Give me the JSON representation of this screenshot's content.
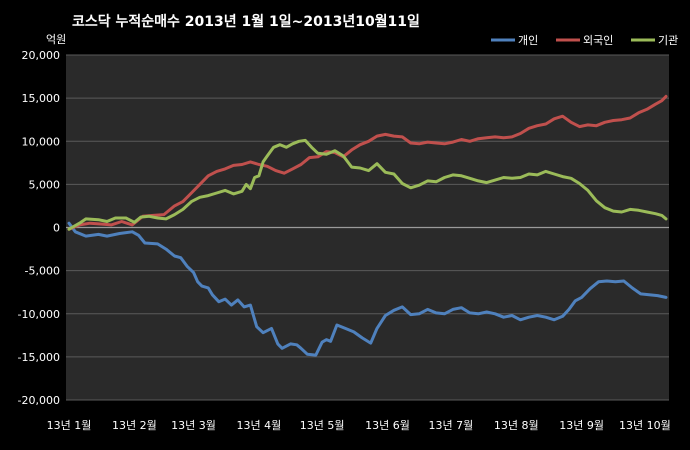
{
  "chart_data": {
    "type": "line",
    "title": "코스닥  누적순매수 2013년 1월 1일~2013년10월11일",
    "unit_label": "억원",
    "ylim": [
      -20000,
      20000
    ],
    "y_ticks": [
      20000,
      15000,
      10000,
      5000,
      0,
      -5000,
      -10000,
      -15000,
      -20000
    ],
    "y_tick_labels": [
      "20,000",
      "15,000",
      "10,000",
      "5,000",
      "0",
      "-5,000",
      "-10,000",
      "-15,000",
      "-20,000"
    ],
    "x_tick_labels": [
      "13년 1월",
      "13년 2월",
      "13년 3월",
      "13년 4월",
      "13년 5월",
      "13년 6월",
      "13년 7월",
      "13년 8월",
      "13년 9월",
      "13년 10월"
    ],
    "x_tick_days": [
      0,
      31,
      59,
      90,
      120,
      151,
      181,
      212,
      243,
      273
    ],
    "x_max_day": 283,
    "grid": "horizontal",
    "legend_position": "top-right",
    "background": "#000000",
    "plot_background": "#2a2a2a",
    "series": [
      {
        "name": "개인",
        "color": "#4f81bd",
        "points": [
          [
            0,
            500
          ],
          [
            3,
            -500
          ],
          [
            8,
            -1000
          ],
          [
            14,
            -800
          ],
          [
            18,
            -1000
          ],
          [
            24,
            -700
          ],
          [
            30,
            -500
          ],
          [
            33,
            -900
          ],
          [
            36,
            -1800
          ],
          [
            42,
            -1900
          ],
          [
            46,
            -2500
          ],
          [
            50,
            -3300
          ],
          [
            53,
            -3500
          ],
          [
            56,
            -4500
          ],
          [
            59,
            -5200
          ],
          [
            61,
            -6300
          ],
          [
            63,
            -6800
          ],
          [
            66,
            -7000
          ],
          [
            68,
            -7800
          ],
          [
            71,
            -8600
          ],
          [
            74,
            -8300
          ],
          [
            77,
            -9000
          ],
          [
            80,
            -8400
          ],
          [
            83,
            -9200
          ],
          [
            86,
            -9000
          ],
          [
            89,
            -11500
          ],
          [
            92,
            -12200
          ],
          [
            96,
            -11700
          ],
          [
            99,
            -13500
          ],
          [
            101,
            -14000
          ],
          [
            105,
            -13500
          ],
          [
            108,
            -13600
          ],
          [
            110,
            -14000
          ],
          [
            113,
            -14700
          ],
          [
            117,
            -14800
          ],
          [
            120,
            -13300
          ],
          [
            122,
            -13000
          ],
          [
            124,
            -13200
          ],
          [
            127,
            -11300
          ],
          [
            131,
            -11700
          ],
          [
            135,
            -12100
          ],
          [
            139,
            -12800
          ],
          [
            143,
            -13400
          ],
          [
            146,
            -11700
          ],
          [
            150,
            -10200
          ],
          [
            154,
            -9600
          ],
          [
            158,
            -9200
          ],
          [
            162,
            -10100
          ],
          [
            166,
            -10000
          ],
          [
            170,
            -9500
          ],
          [
            174,
            -9900
          ],
          [
            178,
            -10000
          ],
          [
            182,
            -9500
          ],
          [
            186,
            -9300
          ],
          [
            190,
            -9900
          ],
          [
            194,
            -10000
          ],
          [
            198,
            -9800
          ],
          [
            202,
            -10000
          ],
          [
            206,
            -10400
          ],
          [
            210,
            -10200
          ],
          [
            214,
            -10700
          ],
          [
            218,
            -10400
          ],
          [
            222,
            -10200
          ],
          [
            226,
            -10400
          ],
          [
            230,
            -10700
          ],
          [
            234,
            -10300
          ],
          [
            237,
            -9500
          ],
          [
            240,
            -8500
          ],
          [
            243,
            -8100
          ],
          [
            247,
            -7100
          ],
          [
            251,
            -6300
          ],
          [
            255,
            -6200
          ],
          [
            259,
            -6300
          ],
          [
            263,
            -6200
          ],
          [
            267,
            -7000
          ],
          [
            271,
            -7700
          ],
          [
            275,
            -7800
          ],
          [
            279,
            -7900
          ],
          [
            283,
            -8100
          ]
        ]
      },
      {
        "name": "외국인",
        "color": "#c0504d",
        "points": [
          [
            0,
            -200
          ],
          [
            5,
            300
          ],
          [
            10,
            500
          ],
          [
            15,
            400
          ],
          [
            20,
            300
          ],
          [
            25,
            700
          ],
          [
            30,
            300
          ],
          [
            35,
            1300
          ],
          [
            40,
            1400
          ],
          [
            45,
            1500
          ],
          [
            50,
            2500
          ],
          [
            54,
            3000
          ],
          [
            58,
            4000
          ],
          [
            62,
            5000
          ],
          [
            66,
            6000
          ],
          [
            70,
            6500
          ],
          [
            74,
            6800
          ],
          [
            78,
            7200
          ],
          [
            82,
            7300
          ],
          [
            86,
            7600
          ],
          [
            90,
            7300
          ],
          [
            94,
            7100
          ],
          [
            98,
            6600
          ],
          [
            102,
            6300
          ],
          [
            106,
            6800
          ],
          [
            110,
            7300
          ],
          [
            114,
            8100
          ],
          [
            118,
            8200
          ],
          [
            122,
            8800
          ],
          [
            126,
            8700
          ],
          [
            130,
            8200
          ],
          [
            134,
            9000
          ],
          [
            138,
            9600
          ],
          [
            142,
            10000
          ],
          [
            146,
            10600
          ],
          [
            150,
            10800
          ],
          [
            154,
            10600
          ],
          [
            158,
            10500
          ],
          [
            162,
            9800
          ],
          [
            166,
            9700
          ],
          [
            170,
            9900
          ],
          [
            174,
            9800
          ],
          [
            178,
            9700
          ],
          [
            182,
            9900
          ],
          [
            186,
            10200
          ],
          [
            190,
            10000
          ],
          [
            194,
            10300
          ],
          [
            198,
            10400
          ],
          [
            202,
            10500
          ],
          [
            206,
            10400
          ],
          [
            210,
            10500
          ],
          [
            214,
            10900
          ],
          [
            218,
            11500
          ],
          [
            222,
            11800
          ],
          [
            226,
            12000
          ],
          [
            230,
            12600
          ],
          [
            234,
            12900
          ],
          [
            238,
            12200
          ],
          [
            242,
            11700
          ],
          [
            246,
            11900
          ],
          [
            250,
            11800
          ],
          [
            254,
            12200
          ],
          [
            258,
            12400
          ],
          [
            262,
            12500
          ],
          [
            266,
            12700
          ],
          [
            270,
            13300
          ],
          [
            274,
            13700
          ],
          [
            278,
            14300
          ],
          [
            281,
            14700
          ],
          [
            283,
            15200
          ]
        ]
      },
      {
        "name": "기관",
        "color": "#9bbb59",
        "points": [
          [
            0,
            -200
          ],
          [
            5,
            500
          ],
          [
            8,
            1000
          ],
          [
            14,
            900
          ],
          [
            18,
            700
          ],
          [
            22,
            1100
          ],
          [
            27,
            1100
          ],
          [
            31,
            600
          ],
          [
            34,
            1200
          ],
          [
            38,
            1300
          ],
          [
            42,
            1100
          ],
          [
            46,
            1000
          ],
          [
            50,
            1500
          ],
          [
            54,
            2100
          ],
          [
            58,
            3000
          ],
          [
            62,
            3500
          ],
          [
            66,
            3700
          ],
          [
            70,
            4000
          ],
          [
            74,
            4300
          ],
          [
            78,
            3900
          ],
          [
            82,
            4200
          ],
          [
            84,
            5000
          ],
          [
            86,
            4500
          ],
          [
            88,
            5800
          ],
          [
            90,
            6000
          ],
          [
            92,
            7600
          ],
          [
            94,
            8300
          ],
          [
            97,
            9300
          ],
          [
            100,
            9600
          ],
          [
            103,
            9300
          ],
          [
            106,
            9700
          ],
          [
            109,
            10000
          ],
          [
            112,
            10100
          ],
          [
            115,
            9300
          ],
          [
            118,
            8600
          ],
          [
            122,
            8500
          ],
          [
            126,
            8900
          ],
          [
            130,
            8300
          ],
          [
            134,
            7000
          ],
          [
            138,
            6900
          ],
          [
            142,
            6600
          ],
          [
            146,
            7400
          ],
          [
            150,
            6400
          ],
          [
            154,
            6200
          ],
          [
            158,
            5100
          ],
          [
            162,
            4600
          ],
          [
            166,
            4900
          ],
          [
            170,
            5400
          ],
          [
            174,
            5300
          ],
          [
            178,
            5800
          ],
          [
            182,
            6100
          ],
          [
            186,
            6000
          ],
          [
            190,
            5700
          ],
          [
            194,
            5400
          ],
          [
            198,
            5200
          ],
          [
            202,
            5500
          ],
          [
            206,
            5800
          ],
          [
            210,
            5700
          ],
          [
            214,
            5800
          ],
          [
            218,
            6200
          ],
          [
            222,
            6100
          ],
          [
            226,
            6500
          ],
          [
            230,
            6200
          ],
          [
            234,
            5900
          ],
          [
            238,
            5700
          ],
          [
            242,
            5100
          ],
          [
            246,
            4300
          ],
          [
            250,
            3100
          ],
          [
            254,
            2300
          ],
          [
            258,
            1900
          ],
          [
            262,
            1800
          ],
          [
            266,
            2100
          ],
          [
            270,
            2000
          ],
          [
            274,
            1800
          ],
          [
            278,
            1600
          ],
          [
            281,
            1400
          ],
          [
            283,
            1000
          ]
        ]
      }
    ]
  }
}
